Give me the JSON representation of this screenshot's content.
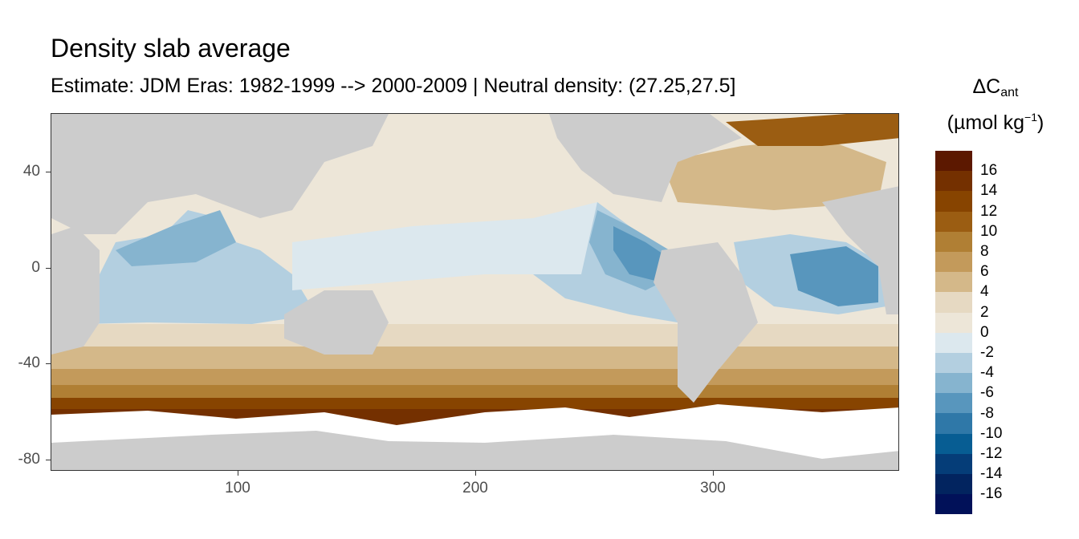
{
  "title": "Density slab average",
  "subtitle": "Estimate: JDM Eras: 1982-1999 --> 2000-2009 | Neutral density: (27.25,27.5]",
  "legend": {
    "title_main": "ΔC",
    "title_sub": "ant",
    "title_unit_pre": "(µmol kg",
    "title_unit_sup": "−1",
    "title_unit_post": ")",
    "labels": [
      "16",
      "14",
      "12",
      "10",
      "8",
      "6",
      "4",
      "2",
      "0",
      "-2",
      "-4",
      "-6",
      "-8",
      "-10",
      "-12",
      "-14",
      "-16"
    ],
    "colors": [
      "#5c1800",
      "#743000",
      "#874400",
      "#9b5d12",
      "#b07f34",
      "#c39a5b",
      "#d4b889",
      "#e6d9c2",
      "#ede6d8",
      "#dce8ee",
      "#b3cfe0",
      "#86b4cf",
      "#5896bd",
      "#2f78a8",
      "#075d93",
      "#053d78",
      "#02245f",
      "#011159"
    ]
  },
  "axes": {
    "x_ticks": [
      "100",
      "200",
      "300"
    ],
    "y_ticks": [
      "40",
      "0",
      "-40",
      "-80"
    ]
  },
  "chart_data": {
    "type": "heatmap",
    "title": "Density slab average",
    "subtitle": "Estimate: JDM Eras: 1982-1999 --> 2000-2009 | Neutral density: (27.25,27.5]",
    "xlabel": "",
    "ylabel": "",
    "xlim": [
      20,
      380
    ],
    "ylim": [
      -85,
      65
    ],
    "x_ticks": [
      100,
      200,
      300
    ],
    "y_ticks": [
      40,
      0,
      -40,
      -80
    ],
    "colorbar_breaks": [
      16,
      14,
      12,
      10,
      8,
      6,
      4,
      2,
      0,
      -2,
      -4,
      -6,
      -8,
      -10,
      -12,
      -14,
      -16
    ],
    "legend_placement": "right",
    "land_color": "#cccccc",
    "no_data_color": "#ffffff"
  }
}
